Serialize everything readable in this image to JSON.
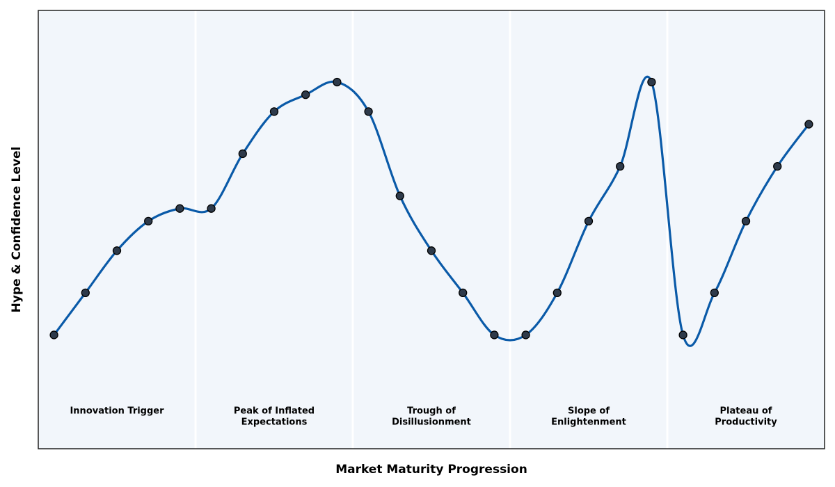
{
  "chart_data": {
    "type": "line",
    "xlabel": "Market Maturity Progression",
    "ylabel": "Hype & Confidence Level",
    "x": [
      0,
      1,
      2,
      3,
      4,
      5,
      6,
      7,
      8,
      9,
      10,
      11,
      12,
      13,
      14,
      15,
      16,
      17,
      18,
      19,
      20,
      21,
      22,
      23,
      24
    ],
    "series": [
      {
        "color": "#0a5aa8",
        "marker_color": "#2e3a4a",
        "values": [
          1,
          2,
          3,
          3.7,
          4,
          4,
          5.3,
          6.3,
          6.7,
          7,
          6.3,
          4.3,
          3,
          2,
          1,
          1,
          2,
          3.7,
          5,
          7,
          1,
          2,
          3.7,
          5,
          6
        ]
      }
    ],
    "xlim": [
      -0.5,
      24.5
    ],
    "ylim": [
      -1.7,
      8.7
    ],
    "phases": [
      [
        "Innovation Trigger"
      ],
      [
        "Peak of Inflated",
        "Expectations"
      ],
      [
        "Trough of",
        "Disillusionment"
      ],
      [
        "Slope of",
        "Enlightenment"
      ],
      [
        "Plateau of",
        "Productivity"
      ]
    ]
  }
}
